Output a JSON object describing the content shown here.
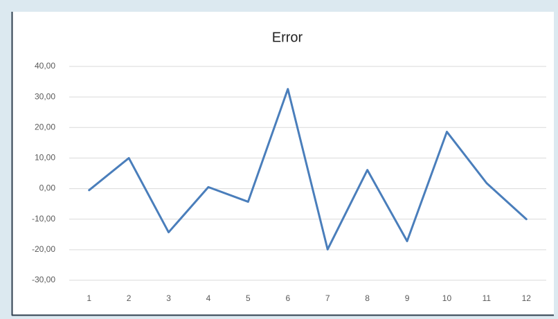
{
  "chart_data": {
    "type": "line",
    "title": "Error",
    "categories": [
      "1",
      "2",
      "3",
      "4",
      "5",
      "6",
      "7",
      "8",
      "9",
      "10",
      "11",
      "12"
    ],
    "values": [
      -0.5,
      10,
      -14.3,
      0.5,
      -4.3,
      32.6,
      -19.9,
      6.1,
      -17.2,
      18.6,
      1.8,
      -10
    ],
    "color": "#4a7ebb",
    "ylim": [
      -30,
      40
    ],
    "yticks": [
      {
        "value": -30,
        "label": "-30,00"
      },
      {
        "value": -20,
        "label": "-20,00"
      },
      {
        "value": -10,
        "label": "-10,00"
      },
      {
        "value": 0,
        "label": "0,00"
      },
      {
        "value": 10,
        "label": "10,00"
      },
      {
        "value": 20,
        "label": "20,00"
      },
      {
        "value": 30,
        "label": "30,00"
      },
      {
        "value": 40,
        "label": "40,00"
      }
    ],
    "grid": true
  }
}
